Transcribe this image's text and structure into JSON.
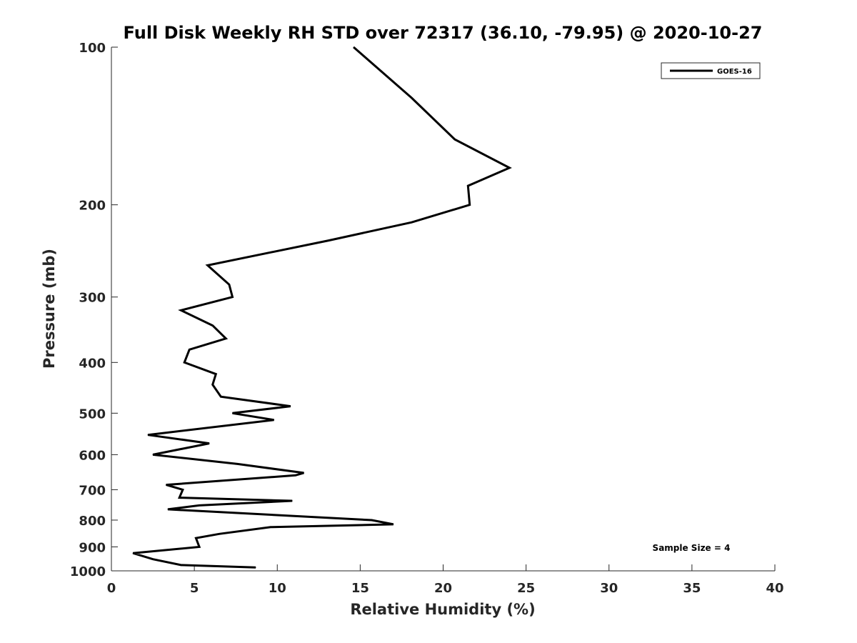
{
  "chart_data": {
    "type": "line",
    "title": "Full Disk Weekly RH STD over 72317 (36.10, -79.95) @ 2020-10-27",
    "xlabel": "Relative Humidity (%)",
    "ylabel": "Pressure (mb)",
    "xlim": [
      0,
      40
    ],
    "ylim": [
      100,
      1000
    ],
    "yscale": "log",
    "y_reversed": true,
    "grid": false,
    "legend_position": "top-right",
    "x_ticks": [
      "0",
      "5",
      "10",
      "15",
      "20",
      "25",
      "30",
      "35",
      "40"
    ],
    "y_ticks": [
      "100",
      "200",
      "300",
      "400",
      "500",
      "600",
      "700",
      "800",
      "900",
      "1000"
    ],
    "series": [
      {
        "name": "GOES-16",
        "color": "#000000",
        "points": [
          [
            14.6,
            100
          ],
          [
            18.1,
            125
          ],
          [
            20.7,
            150
          ],
          [
            24.0,
            170
          ],
          [
            21.5,
            184
          ],
          [
            21.6,
            200
          ],
          [
            18.1,
            216
          ],
          [
            13.1,
            234
          ],
          [
            5.8,
            261
          ],
          [
            7.1,
            284
          ],
          [
            7.3,
            300
          ],
          [
            4.2,
            318
          ],
          [
            6.1,
            340
          ],
          [
            6.9,
            360
          ],
          [
            4.7,
            378
          ],
          [
            4.4,
            400
          ],
          [
            6.3,
            421
          ],
          [
            6.1,
            441
          ],
          [
            6.6,
            465
          ],
          [
            10.8,
            485
          ],
          [
            7.3,
            500
          ],
          [
            9.8,
            515
          ],
          [
            2.2,
            550
          ],
          [
            5.9,
            571
          ],
          [
            2.5,
            600
          ],
          [
            7.6,
            625
          ],
          [
            11.6,
            650
          ],
          [
            11.1,
            657
          ],
          [
            3.3,
            685
          ],
          [
            4.3,
            700
          ],
          [
            4.1,
            725
          ],
          [
            10.9,
            735
          ],
          [
            5.3,
            750
          ],
          [
            3.4,
            763
          ],
          [
            15.7,
            800
          ],
          [
            17.0,
            815
          ],
          [
            9.6,
            825
          ],
          [
            6.5,
            850
          ],
          [
            5.1,
            866
          ],
          [
            5.3,
            900
          ],
          [
            1.3,
            925
          ],
          [
            2.5,
            950
          ],
          [
            4.2,
            975
          ],
          [
            8.7,
            985
          ]
        ]
      }
    ],
    "annotations": [
      "Sample Size = 4"
    ]
  }
}
